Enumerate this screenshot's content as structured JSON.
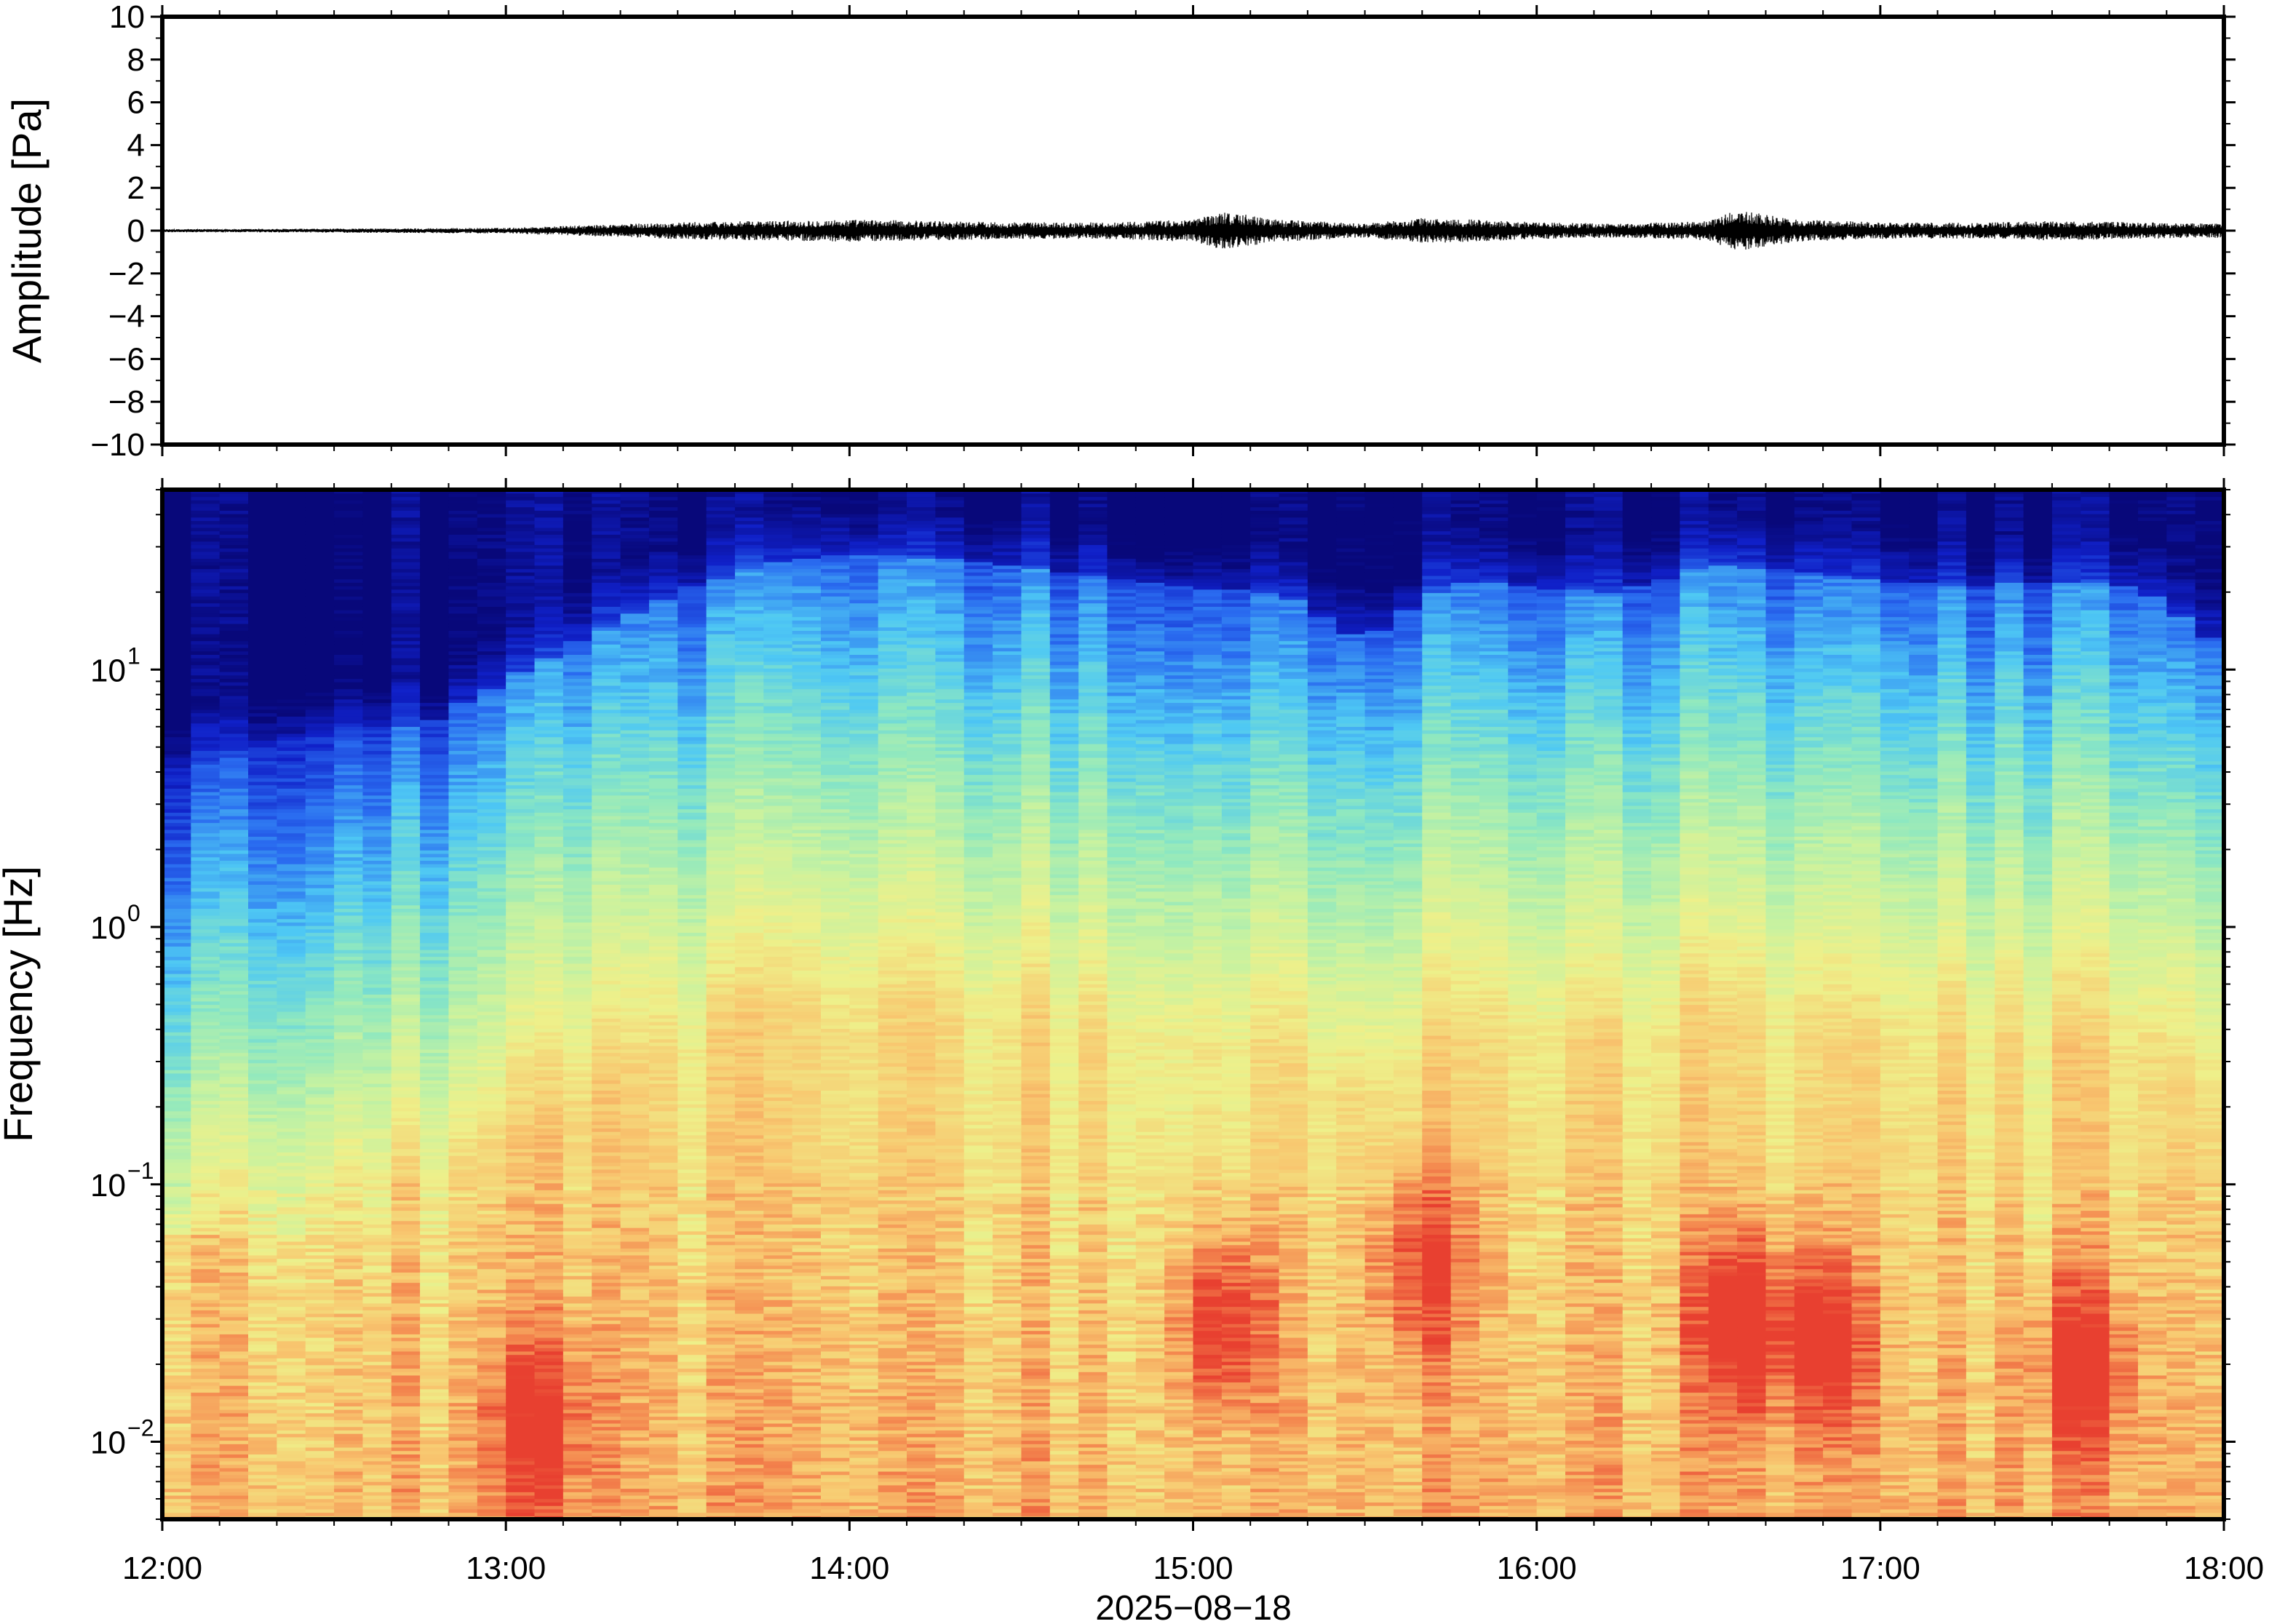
{
  "chart_data": [
    {
      "type": "line",
      "title": "",
      "xlabel": "",
      "ylabel": "Amplitude [Pa]",
      "ylim": [
        -10,
        10
      ],
      "yticks": [
        {
          "value": 10,
          "label": "10"
        },
        {
          "value": 8,
          "label": "8"
        },
        {
          "value": 6,
          "label": "6"
        },
        {
          "value": 4,
          "label": "4"
        },
        {
          "value": 2,
          "label": "2"
        },
        {
          "value": 0,
          "label": "0"
        },
        {
          "value": -2,
          "label": "−2"
        },
        {
          "value": -4,
          "label": "−4"
        },
        {
          "value": -6,
          "label": "−6"
        },
        {
          "value": -8,
          "label": "−8"
        },
        {
          "value": -10,
          "label": "−10"
        }
      ],
      "xlim": [
        "12:00",
        "18:00"
      ],
      "grid": false,
      "series_color": "#000000",
      "envelope": {
        "x": [
          "12:00",
          "12:30",
          "13:00",
          "13:15",
          "13:30",
          "13:45",
          "14:00",
          "14:15",
          "14:30",
          "14:45",
          "15:00",
          "15:05",
          "15:15",
          "15:30",
          "15:40",
          "15:50",
          "16:00",
          "16:15",
          "16:30",
          "16:35",
          "16:45",
          "17:00",
          "17:15",
          "17:30",
          "17:45",
          "18:00"
        ],
        "amplitude": [
          0.05,
          0.07,
          0.1,
          0.2,
          0.3,
          0.35,
          0.4,
          0.35,
          0.3,
          0.3,
          0.4,
          0.7,
          0.4,
          0.25,
          0.45,
          0.4,
          0.3,
          0.25,
          0.35,
          0.75,
          0.4,
          0.3,
          0.28,
          0.35,
          0.3,
          0.25
        ]
      }
    },
    {
      "type": "heatmap",
      "title": "",
      "xlabel": "2025−08−18",
      "ylabel": "Frequency [Hz]",
      "yscale": "log",
      "ylim": [
        0.005,
        50
      ],
      "xlim": [
        "12:00",
        "18:00"
      ],
      "xticks": [
        "12:00",
        "13:00",
        "14:00",
        "15:00",
        "16:00",
        "17:00",
        "18:00"
      ],
      "yticks": [
        {
          "value": 0.01,
          "base": "10",
          "exp": "−2"
        },
        {
          "value": 0.1,
          "base": "10",
          "exp": "−1"
        },
        {
          "value": 1,
          "base": "10",
          "exp": "0"
        },
        {
          "value": 10,
          "base": "10",
          "exp": "1"
        }
      ],
      "colormap": "rainbow (dark blue low, red high)",
      "colormap_stops": [
        "#08087a",
        "#1020c8",
        "#2a6cf0",
        "#4ec8f4",
        "#8ee8c0",
        "#c8f2a0",
        "#eef08a",
        "#f8c870",
        "#f48a50",
        "#e84030"
      ],
      "regions": {
        "time_hours": [
          12.0,
          12.25,
          12.5,
          12.75,
          13.0,
          13.25,
          13.5,
          13.75,
          14.0,
          14.25,
          14.5,
          14.75,
          15.0,
          15.25,
          15.5,
          15.75,
          16.0,
          16.25,
          16.5,
          16.75,
          17.0,
          17.25,
          17.5,
          17.75,
          18.0
        ],
        "top_noise_boundary_hz": [
          4,
          5,
          6,
          6,
          9,
          14,
          20,
          26,
          28,
          27,
          25,
          23,
          21,
          20,
          13,
          22,
          21,
          20,
          26,
          24,
          22,
          21,
          22,
          21,
          12
        ],
        "low_freq_hotspots": [
          {
            "center_time": "15:05",
            "freq_hz": 0.03,
            "intensity": 0.95
          },
          {
            "center_time": "15:40",
            "freq_hz": 0.05,
            "intensity": 0.8
          },
          {
            "center_time": "16:35",
            "freq_hz": 0.03,
            "intensity": 0.95
          },
          {
            "center_time": "16:50",
            "freq_hz": 0.025,
            "intensity": 0.9
          },
          {
            "center_time": "17:35",
            "freq_hz": 0.02,
            "intensity": 0.88
          },
          {
            "center_time": "13:05",
            "freq_hz": 0.012,
            "intensity": 0.75
          }
        ]
      },
      "grid": false
    }
  ]
}
